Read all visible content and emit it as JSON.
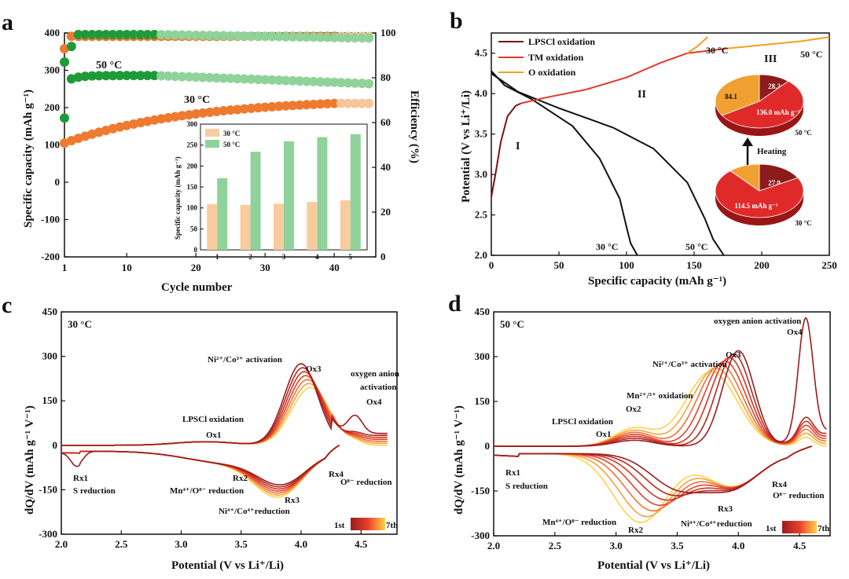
{
  "palette": {
    "orange": "#ee7a30",
    "orange_light": "#f7c59a",
    "green": "#1f9a3a",
    "green_light": "#8fd39a",
    "bar30": "#f8cc9e",
    "bar50": "#8fd39a",
    "dark": "#7a1212",
    "red": "#e03a2e",
    "amber": "#f0a020",
    "pie_dark": "#8c1c1c",
    "pie_red": "#e02a2a",
    "pie_amber": "#f0a030",
    "grad_lo": "#9b1c1c",
    "grad_mid": "#e8402a",
    "grad_hi": "#ffd24a"
  },
  "chart_data": [
    {
      "id": "a",
      "panel_label": "a",
      "type": "scatter",
      "xlabel": "Cycle number",
      "ylabel": "Specific capacity (mAh g⁻¹)",
      "ylabel2": "Efficiency (%)",
      "xlim": [
        1,
        46
      ],
      "ylim": [
        -200,
        400
      ],
      "y2lim": [
        0,
        100
      ],
      "xticks": [
        "1",
        "10",
        "20",
        "30",
        "40"
      ],
      "xtick_values": [
        1,
        10,
        20,
        30,
        40
      ],
      "yticks": [
        "-200",
        "-100",
        "0",
        "100",
        "200",
        "300",
        "400"
      ],
      "yticks2": [
        "0",
        "20",
        "40",
        "60",
        "80",
        "100"
      ],
      "annotations": [
        "50 °C",
        "30 °C"
      ],
      "series": [
        {
          "name": "30 °C capacity",
          "kind": "cap30"
        },
        {
          "name": "50 °C capacity",
          "kind": "cap50"
        },
        {
          "name": "30 °C efficiency",
          "kind": "eff30"
        },
        {
          "name": "50 °C efficiency",
          "kind": "eff50"
        }
      ],
      "inset": {
        "type": "bar",
        "ylabel": "Specific capacity (mAh g⁻¹)",
        "categories": [
          "1",
          "2",
          "3",
          "4",
          "5"
        ],
        "yticks": [
          "0",
          "50",
          "100",
          "150",
          "200",
          "250",
          "300"
        ],
        "ylim": [
          0,
          300
        ],
        "series": [
          {
            "name": "30 °C",
            "values": [
              109,
              107,
              110,
              114,
              118
            ]
          },
          {
            "name": "50 °C",
            "values": [
              171,
              234,
              259,
              269,
              276
            ]
          }
        ]
      }
    },
    {
      "id": "b",
      "panel_label": "b",
      "type": "line",
      "xlabel": "Specific capacity (mAh g⁻¹)",
      "ylabel": "Potential (V vs Li⁺/Li)",
      "xlim": [
        0,
        250
      ],
      "ylim": [
        2.0,
        4.75
      ],
      "xticks": [
        "0",
        "50",
        "100",
        "150",
        "200",
        "250"
      ],
      "yticks": [
        "2.0",
        "2.5",
        "3.0",
        "3.5",
        "4.0",
        "4.5"
      ],
      "legend": [
        "LPSCl oxidation",
        "TM oxidation",
        "O oxidation"
      ],
      "annotations": [
        "I",
        "II",
        "III",
        "30 °C",
        "50 °C",
        "30 °C",
        "50 °C",
        "Heating"
      ],
      "series": [
        {
          "name": "discharge 30 °C",
          "points": [
            [
              0,
              4.28
            ],
            [
              10,
              4.1
            ],
            [
              30,
              3.93
            ],
            [
              60,
              3.6
            ],
            [
              80,
              3.2
            ],
            [
              95,
              2.7
            ],
            [
              100,
              2.35
            ],
            [
              103,
              2.15
            ],
            [
              108,
              2.0
            ]
          ]
        },
        {
          "name": "discharge 50 °C",
          "points": [
            [
              0,
              4.25
            ],
            [
              20,
              4.02
            ],
            [
              50,
              3.82
            ],
            [
              90,
              3.58
            ],
            [
              120,
              3.32
            ],
            [
              145,
              2.9
            ],
            [
              158,
              2.45
            ],
            [
              164,
              2.2
            ],
            [
              172,
              2.0
            ]
          ]
        },
        {
          "name": "charge LPSCl",
          "points": [
            [
              0,
              2.72
            ],
            [
              3,
              3.0
            ],
            [
              7,
              3.4
            ],
            [
              12,
              3.72
            ],
            [
              18,
              3.85
            ],
            [
              22,
              3.88
            ]
          ]
        },
        {
          "name": "charge TM",
          "points": [
            [
              22,
              3.88
            ],
            [
              40,
              3.95
            ],
            [
              70,
              4.05
            ],
            [
              100,
              4.2
            ],
            [
              125,
              4.38
            ],
            [
              145,
              4.5
            ],
            [
              170,
              4.55
            ],
            [
              175,
              4.56
            ]
          ]
        },
        {
          "name": "charge O 30 °C",
          "points": [
            [
              145,
              4.5
            ],
            [
              152,
              4.58
            ],
            [
              160,
              4.7
            ]
          ]
        },
        {
          "name": "charge O 50 °C",
          "points": [
            [
              175,
              4.56
            ],
            [
              200,
              4.6
            ],
            [
              230,
              4.65
            ],
            [
              250,
              4.7
            ]
          ]
        }
      ],
      "pies": [
        {
          "label": "50 °C",
          "slices": [
            {
              "name": "O",
              "value": 84.1,
              "text": "84.1"
            },
            {
              "name": "LPSCl",
              "value": 28.2,
              "text": "28.2"
            },
            {
              "name": "TM",
              "value": 136.0,
              "text": "136.0 mAh g⁻¹"
            }
          ]
        },
        {
          "label": "30 °C",
          "slices": [
            {
              "name": "O",
              "value": 18.4,
              "text": "18.4"
            },
            {
              "name": "LPSCl",
              "value": 27.0,
              "text": "27.0"
            },
            {
              "name": "TM",
              "value": 114.5,
              "text": "114.5 mAh g⁻¹"
            }
          ]
        }
      ]
    },
    {
      "id": "c",
      "panel_label": "c",
      "type": "line",
      "temp_label": "30 °C",
      "xlabel": "Potential (V vs Li⁺/Li)",
      "ylabel": "dQ/dV (mAh g⁻¹ V⁻¹)",
      "xlim": [
        2.0,
        4.8
      ],
      "ylim": [
        -300,
        450
      ],
      "xticks": [
        "2.0",
        "2.5",
        "3.0",
        "3.5",
        "4.0",
        "4.5"
      ],
      "yticks": [
        "-300",
        "-150",
        "0",
        "150",
        "300",
        "450"
      ],
      "legend": {
        "first": "1st",
        "last": "7th"
      },
      "annotations": [
        "Ni²⁺/Co³⁺ activation",
        "Ox3",
        "oxygen anion",
        "activation",
        "Ox4",
        "LPSCl oxidation",
        "Ox1",
        "Rx1",
        "S reduction",
        "Rx2",
        "Mn⁴⁺/O⁸⁻ reduction",
        "Rx4",
        "O⁸⁻ reduction",
        "Rx3",
        "Ni⁴⁺/Co⁴⁺reduction"
      ],
      "cycles": 7
    },
    {
      "id": "d",
      "panel_label": "d",
      "type": "line",
      "temp_label": "50 °C",
      "xlabel": "Potential (V vs Li⁺/Li)",
      "ylabel": "dQ/dV (mAh g⁻¹ V⁻¹)",
      "xlim": [
        2.0,
        4.75
      ],
      "ylim": [
        -300,
        450
      ],
      "xticks": [
        "2.0",
        "2.5",
        "3.0",
        "3.5",
        "4.0",
        "4.5"
      ],
      "yticks": [
        "-300",
        "-150",
        "0",
        "150",
        "300",
        "450"
      ],
      "legend": {
        "first": "1st",
        "last": "7th"
      },
      "annotations": [
        "oxygen anion activation",
        "Ox4",
        "Ni²⁺/Co³⁺ activation",
        "Ox3",
        "Mn²⁺/³⁺ oxidation",
        "Ox2",
        "LPSCl oxidation",
        "Ox1",
        "Rx1",
        "S reduction",
        "Rx4",
        "O⁸⁻ reduction",
        "Rx3",
        "Mn⁴⁺/O⁸⁻ reduction",
        "Rx2",
        "Ni⁴⁺/Co⁴⁺reduction"
      ],
      "cycles": 7
    }
  ]
}
